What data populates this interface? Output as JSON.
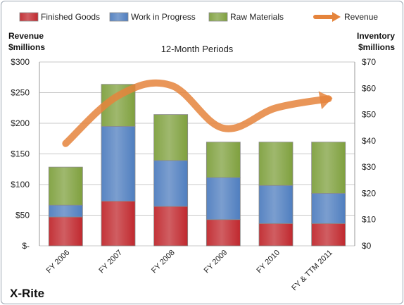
{
  "chart_data": {
    "type": "bar",
    "stacked": true,
    "title": "12-Month Periods",
    "company": "X-Rite",
    "categories": [
      "FY 2006",
      "FY 2007",
      "FY 2008",
      "FY 2009",
      "FY 2010",
      "FY & TTM 2011"
    ],
    "left_axis": {
      "label_line1": "Revenue",
      "label_line2": "$millions",
      "min": 0,
      "max": 300,
      "step": 50,
      "tick_labels": [
        "$-",
        "$50",
        "$100",
        "$150",
        "$200",
        "$250",
        "$300"
      ]
    },
    "right_axis": {
      "label_line1": "Inventory",
      "label_line2": "$millions",
      "min": 0,
      "max": 70,
      "step": 10,
      "tick_labels": [
        "$0",
        "$10",
        "$20",
        "$30",
        "$40",
        "$50",
        "$60",
        "$70"
      ]
    },
    "series": [
      {
        "name": "Finished Goods",
        "axis": "right",
        "color": "#c0282e",
        "values": [
          11,
          17,
          15,
          10,
          8.5,
          8.5
        ]
      },
      {
        "name": "Work in Progress",
        "axis": "right",
        "color": "#4f7ebf",
        "values": [
          4.5,
          28.5,
          17.5,
          16,
          14.5,
          11.5
        ]
      },
      {
        "name": "Raw Materials",
        "axis": "right",
        "color": "#7fa03e",
        "values": [
          14.5,
          16,
          17.5,
          13.5,
          16.5,
          19.5
        ]
      },
      {
        "name": "Revenue",
        "axis": "left",
        "type": "line",
        "color": "#e5843c",
        "values": [
          167,
          245,
          262,
          192,
          225,
          240
        ]
      }
    ],
    "grid": true,
    "legend": "top"
  }
}
